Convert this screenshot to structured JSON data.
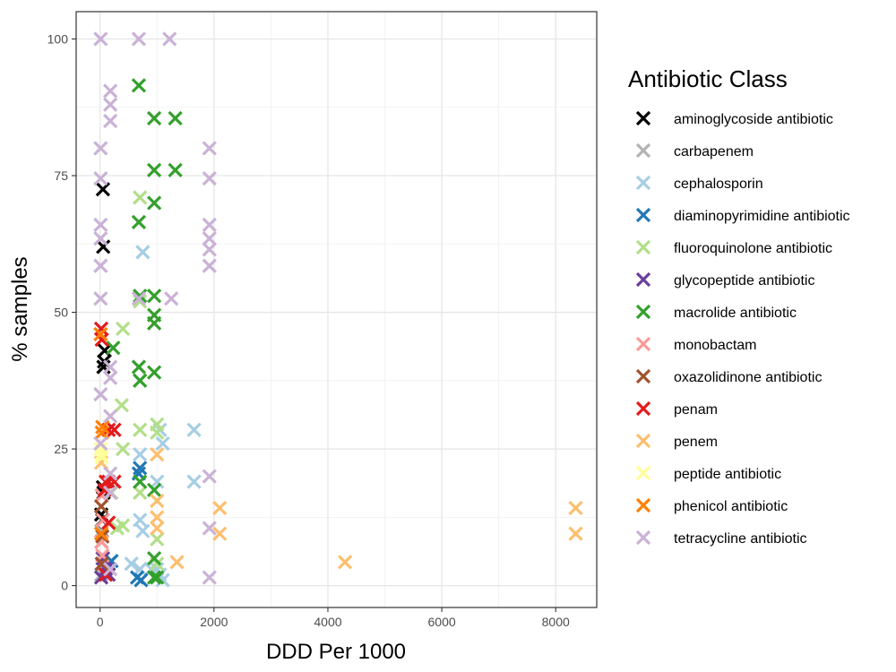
{
  "chart_data": {
    "type": "scatter",
    "marker": "x",
    "xlabel": "DDD Per 1000",
    "ylabel": "% samples",
    "xlim": [
      -420,
      8720
    ],
    "ylim": [
      -4,
      105
    ],
    "x_ticks": [
      0,
      2000,
      4000,
      6000,
      8000
    ],
    "y_ticks": [
      0,
      25,
      50,
      75,
      100
    ],
    "grid": true,
    "legend": {
      "title": "Antibiotic Class",
      "placement": "right"
    },
    "series": [
      {
        "name": "aminoglycoside antibiotic",
        "color": "#000000",
        "points": [
          [
            50,
            72.5
          ],
          [
            55,
            62
          ],
          [
            80,
            43
          ],
          [
            70,
            41
          ],
          [
            60,
            40
          ],
          [
            20,
            13
          ],
          [
            40,
            12
          ],
          [
            60,
            17
          ],
          [
            50,
            18
          ],
          [
            30,
            10
          ]
        ]
      },
      {
        "name": "carbapenem",
        "color": "#b3b3b3",
        "points": [
          [
            20,
            10
          ],
          [
            30,
            8
          ],
          [
            40,
            5
          ],
          [
            50,
            4
          ],
          [
            20,
            2
          ],
          [
            60,
            3
          ]
        ]
      },
      {
        "name": "cephalosporin",
        "color": "#a6cee3",
        "points": [
          [
            750,
            61
          ],
          [
            1650,
            28.5
          ],
          [
            1050,
            28.5
          ],
          [
            1100,
            26
          ],
          [
            1650,
            19
          ],
          [
            1000,
            19
          ],
          [
            700,
            24
          ],
          [
            700,
            12
          ],
          [
            750,
            10
          ],
          [
            1000,
            3
          ],
          [
            1050,
            2
          ],
          [
            1100,
            1
          ],
          [
            550,
            4
          ],
          [
            700,
            3
          ],
          [
            900,
            3
          ]
        ]
      },
      {
        "name": "diaminopyrimidine antibiotic",
        "color": "#1f78b4",
        "points": [
          [
            700,
            21.5
          ],
          [
            680,
            20.5
          ],
          [
            650,
            1.5
          ],
          [
            720,
            1
          ],
          [
            200,
            4.5
          ],
          [
            150,
            4
          ],
          [
            50,
            5
          ],
          [
            100,
            2
          ]
        ]
      },
      {
        "name": "fluoroquinolone antibiotic",
        "color": "#b2df8a",
        "points": [
          [
            700,
            71
          ],
          [
            400,
            47
          ],
          [
            700,
            52
          ],
          [
            380,
            33
          ],
          [
            200,
            17
          ],
          [
            400,
            25
          ],
          [
            700,
            28.5
          ],
          [
            1000,
            29.5
          ],
          [
            1000,
            28
          ],
          [
            700,
            17
          ],
          [
            1000,
            8.5
          ],
          [
            400,
            11
          ],
          [
            300,
            10.5
          ],
          [
            1000,
            4
          ]
        ]
      },
      {
        "name": "glycopeptide antibiotic",
        "color": "#6a3d9a",
        "points": [
          [
            50,
            5
          ],
          [
            100,
            3
          ],
          [
            20,
            1.5
          ],
          [
            150,
            2
          ]
        ]
      },
      {
        "name": "macrolide antibiotic",
        "color": "#33a02c",
        "points": [
          [
            680,
            91.5
          ],
          [
            950,
            85.5
          ],
          [
            1320,
            85.5
          ],
          [
            950,
            76
          ],
          [
            1320,
            76
          ],
          [
            950,
            70
          ],
          [
            680,
            66.5
          ],
          [
            700,
            53
          ],
          [
            950,
            53
          ],
          [
            950,
            49.5
          ],
          [
            950,
            48
          ],
          [
            230,
            43.5
          ],
          [
            680,
            40
          ],
          [
            700,
            37.5
          ],
          [
            950,
            39
          ],
          [
            700,
            19
          ],
          [
            950,
            17.5
          ],
          [
            950,
            5
          ],
          [
            950,
            1.5
          ],
          [
            1000,
            1.5
          ]
        ]
      },
      {
        "name": "monobactam",
        "color": "#fb9a99",
        "points": [
          [
            30,
            16.5
          ],
          [
            50,
            12
          ],
          [
            20,
            8
          ],
          [
            40,
            5.5
          ]
        ]
      },
      {
        "name": "oxazolidinone antibiotic",
        "color": "#a0522d",
        "points": [
          [
            20,
            14.5
          ],
          [
            40,
            9
          ],
          [
            30,
            4
          ]
        ]
      },
      {
        "name": "penam",
        "color": "#e31a1c",
        "points": [
          [
            20,
            47
          ],
          [
            30,
            45
          ],
          [
            150,
            28.5
          ],
          [
            250,
            28.5
          ],
          [
            100,
            19
          ],
          [
            150,
            19
          ],
          [
            250,
            19
          ],
          [
            80,
            17.5
          ],
          [
            150,
            11.5
          ],
          [
            100,
            2
          ]
        ]
      },
      {
        "name": "penem",
        "color": "#fdbf6f",
        "points": [
          [
            8350,
            14.2
          ],
          [
            8350,
            9.5
          ],
          [
            4300,
            4.3
          ],
          [
            2100,
            14.2
          ],
          [
            2100,
            9.5
          ],
          [
            1350,
            4.3
          ],
          [
            1000,
            24
          ],
          [
            1000,
            15.5
          ],
          [
            1000,
            12.5
          ],
          [
            1000,
            10.5
          ],
          [
            20,
            22.5
          ]
        ]
      },
      {
        "name": "peptide antibiotic",
        "color": "#ffff99",
        "points": [
          [
            10,
            25
          ],
          [
            20,
            24
          ],
          [
            30,
            23.5
          ]
        ]
      },
      {
        "name": "phenicol antibiotic",
        "color": "#ff7f00",
        "points": [
          [
            10,
            46
          ],
          [
            40,
            29
          ],
          [
            30,
            28
          ],
          [
            20,
            9.5
          ]
        ]
      },
      {
        "name": "tetracycline antibiotic",
        "color": "#cab2d6",
        "points": [
          [
            10,
            100
          ],
          [
            680,
            100
          ],
          [
            1220,
            100
          ],
          [
            180,
            90.5
          ],
          [
            180,
            88
          ],
          [
            180,
            85
          ],
          [
            10,
            80
          ],
          [
            1920,
            80
          ],
          [
            10,
            74.5
          ],
          [
            1920,
            74.5
          ],
          [
            10,
            66
          ],
          [
            1920,
            66
          ],
          [
            10,
            63.5
          ],
          [
            1920,
            63.5
          ],
          [
            1920,
            61.5
          ],
          [
            10,
            58.5
          ],
          [
            1920,
            58.5
          ],
          [
            10,
            52.5
          ],
          [
            680,
            52.5
          ],
          [
            1250,
            52.5
          ],
          [
            180,
            40
          ],
          [
            180,
            38
          ],
          [
            10,
            35
          ],
          [
            180,
            31
          ],
          [
            10,
            26
          ],
          [
            180,
            20.5
          ],
          [
            1920,
            20
          ],
          [
            180,
            17
          ],
          [
            1920,
            10.5
          ],
          [
            1920,
            1.5
          ],
          [
            180,
            3
          ]
        ]
      }
    ]
  }
}
